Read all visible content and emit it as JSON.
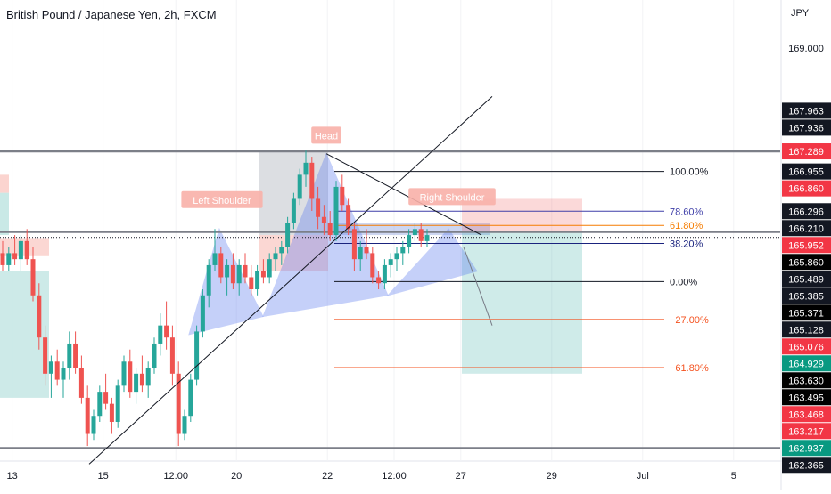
{
  "header": {
    "title": "British Pound / Japanese Yen, 2h, FXCM",
    "currency": "JPY"
  },
  "colors": {
    "bull": "#26a69a",
    "bear": "#ef5350",
    "fib_main": "#131722",
    "fib_786": "#3f3fa8",
    "fib_618": "#f57c00",
    "fib_382": "#1a237e",
    "fib_ext": "#f4511e",
    "pattern_fill": "#5c7bf0",
    "label_bg": "#f8b0a8"
  },
  "chart_data": {
    "type": "candlestick",
    "symbol": "British Pound / Japanese Yen",
    "interval": "2h",
    "source": "FXCM",
    "y_range": [
      162.15,
      169.8
    ],
    "y_ticks": [
      {
        "label": "169.000",
        "value": 169.0,
        "style": "plain"
      },
      {
        "label": "167.963",
        "value": 167.963,
        "style": "dark"
      },
      {
        "label": "167.936",
        "value": 167.936,
        "style": "dark"
      },
      {
        "label": "167.289",
        "value": 167.289,
        "style": "red"
      },
      {
        "label": "166.955",
        "value": 166.955,
        "style": "dark"
      },
      {
        "label": "166.860",
        "value": 166.86,
        "style": "red"
      },
      {
        "label": "166.296",
        "value": 166.296,
        "style": "dark"
      },
      {
        "label": "166.210",
        "value": 166.21,
        "style": "dark"
      },
      {
        "label": "165.952",
        "value": 165.952,
        "style": "red"
      },
      {
        "label": "165.860",
        "value": 165.86,
        "style": "black"
      },
      {
        "label": "165.489",
        "value": 165.489,
        "style": "dark"
      },
      {
        "label": "165.385",
        "value": 165.385,
        "style": "dark"
      },
      {
        "label": "165.371",
        "value": 165.371,
        "style": "black"
      },
      {
        "label": "165.128",
        "value": 165.128,
        "style": "dark"
      },
      {
        "label": "165.076",
        "value": 165.076,
        "style": "red"
      },
      {
        "label": "164.929",
        "value": 164.929,
        "style": "green"
      },
      {
        "label": "163.630",
        "value": 163.63,
        "style": "black"
      },
      {
        "label": "163.495",
        "value": 163.495,
        "style": "black"
      },
      {
        "label": "163.468",
        "value": 163.468,
        "style": "red"
      },
      {
        "label": "163.217",
        "value": 163.217,
        "style": "red"
      },
      {
        "label": "162.937",
        "value": 162.937,
        "style": "green"
      },
      {
        "label": "162.365",
        "value": 162.365,
        "style": "dark"
      }
    ],
    "x_ticks": [
      {
        "label": "13",
        "index": 2
      },
      {
        "label": "15",
        "index": 17
      },
      {
        "label": "12:00",
        "index": 29
      },
      {
        "label": "20",
        "index": 39
      },
      {
        "label": "22",
        "index": 54
      },
      {
        "label": "12:00",
        "index": 65
      },
      {
        "label": "27",
        "index": 76
      },
      {
        "label": "29",
        "index": 91
      },
      {
        "label": "Jul",
        "index": 106
      },
      {
        "label": "5",
        "index": 121
      }
    ],
    "candles": [
      [
        165.6,
        165.8,
        165.3,
        165.4
      ],
      [
        165.4,
        165.7,
        165.3,
        165.6
      ],
      [
        165.6,
        165.9,
        165.4,
        165.5
      ],
      [
        165.5,
        165.9,
        165.3,
        165.8
      ],
      [
        165.8,
        166.0,
        165.4,
        165.5
      ],
      [
        165.5,
        165.7,
        164.8,
        164.9
      ],
      [
        164.9,
        165.1,
        164.0,
        164.2
      ],
      [
        164.2,
        164.4,
        163.4,
        163.6
      ],
      [
        163.6,
        163.9,
        163.2,
        163.8
      ],
      [
        163.8,
        164.0,
        163.4,
        163.5
      ],
      [
        163.5,
        163.8,
        163.2,
        163.7
      ],
      [
        163.7,
        164.3,
        163.5,
        164.1
      ],
      [
        164.1,
        164.3,
        163.6,
        163.7
      ],
      [
        163.7,
        163.9,
        163.1,
        163.2
      ],
      [
        163.2,
        163.4,
        162.4,
        162.6
      ],
      [
        162.6,
        163.0,
        162.5,
        162.9
      ],
      [
        162.9,
        163.4,
        162.8,
        163.3
      ],
      [
        163.3,
        163.6,
        163.0,
        163.1
      ],
      [
        163.1,
        163.2,
        162.6,
        162.8
      ],
      [
        162.8,
        163.5,
        162.7,
        163.4
      ],
      [
        163.4,
        163.9,
        163.3,
        163.8
      ],
      [
        163.8,
        164.0,
        163.2,
        163.3
      ],
      [
        163.3,
        163.7,
        163.1,
        163.6
      ],
      [
        163.6,
        163.9,
        163.3,
        163.4
      ],
      [
        163.4,
        163.8,
        163.2,
        163.7
      ],
      [
        163.7,
        164.2,
        163.6,
        164.1
      ],
      [
        164.1,
        164.6,
        163.9,
        164.4
      ],
      [
        164.4,
        164.8,
        164.0,
        164.2
      ],
      [
        164.2,
        164.4,
        163.4,
        163.6
      ],
      [
        163.6,
        163.8,
        162.4,
        162.6
      ],
      [
        162.6,
        163.0,
        162.5,
        162.9
      ],
      [
        162.9,
        163.6,
        162.8,
        163.5
      ],
      [
        163.5,
        164.4,
        163.4,
        164.3
      ],
      [
        164.3,
        165.0,
        164.2,
        164.9
      ],
      [
        164.9,
        165.5,
        164.7,
        165.4
      ],
      [
        165.4,
        166.0,
        165.3,
        165.6
      ],
      [
        165.6,
        165.7,
        165.1,
        165.2
      ],
      [
        165.2,
        165.5,
        164.9,
        165.4
      ],
      [
        165.4,
        165.6,
        165.0,
        165.1
      ],
      [
        165.1,
        165.5,
        164.9,
        165.4
      ],
      [
        165.4,
        165.6,
        165.1,
        165.2
      ],
      [
        165.2,
        165.4,
        164.9,
        165.0
      ],
      [
        165.0,
        165.4,
        164.9,
        165.3
      ],
      [
        165.3,
        165.5,
        165.1,
        165.2
      ],
      [
        165.2,
        165.6,
        165.1,
        165.5
      ],
      [
        165.5,
        165.7,
        165.3,
        165.6
      ],
      [
        165.6,
        165.8,
        165.4,
        165.7
      ],
      [
        165.7,
        166.2,
        165.6,
        166.1
      ],
      [
        166.1,
        166.6,
        166.0,
        166.5
      ],
      [
        166.5,
        167.0,
        166.4,
        166.9
      ],
      [
        166.9,
        167.3,
        166.7,
        167.1
      ],
      [
        167.1,
        167.2,
        166.3,
        166.5
      ],
      [
        166.5,
        166.7,
        166.0,
        166.2
      ],
      [
        166.2,
        166.4,
        165.9,
        166.1
      ],
      [
        166.1,
        166.3,
        165.8,
        165.9
      ],
      [
        165.9,
        166.8,
        165.8,
        166.7
      ],
      [
        166.7,
        166.9,
        166.3,
        166.4
      ],
      [
        166.4,
        166.5,
        165.9,
        166.0
      ],
      [
        166.0,
        166.1,
        165.3,
        165.5
      ],
      [
        165.5,
        165.8,
        165.3,
        165.7
      ],
      [
        165.7,
        166.0,
        165.5,
        165.6
      ],
      [
        165.6,
        165.7,
        165.1,
        165.2
      ],
      [
        165.2,
        165.3,
        165.0,
        165.1
      ],
      [
        165.1,
        165.5,
        165.0,
        165.4
      ],
      [
        165.4,
        165.6,
        165.2,
        165.5
      ],
      [
        165.5,
        165.7,
        165.3,
        165.6
      ],
      [
        165.6,
        165.8,
        165.4,
        165.7
      ],
      [
        165.7,
        166.0,
        165.6,
        165.9
      ],
      [
        165.9,
        166.1,
        165.8,
        166.0
      ],
      [
        166.0,
        166.1,
        165.7,
        165.8
      ],
      [
        165.8,
        166.0,
        165.7,
        165.9
      ]
    ],
    "fib_levels": [
      {
        "label": "100.00%",
        "price": 166.955,
        "color": "#131722"
      },
      {
        "label": "78.60%",
        "price": 166.296,
        "color": "#3f3fa8"
      },
      {
        "label": "61.80%",
        "price": 166.06,
        "color": "#f57c00"
      },
      {
        "label": "38.20%",
        "price": 165.76,
        "color": "#1a237e"
      },
      {
        "label": "0.00%",
        "price": 165.128,
        "color": "#131722"
      },
      {
        "label": "−27.00%",
        "price": 164.5,
        "color": "#f4511e"
      },
      {
        "label": "−61.80%",
        "price": 163.7,
        "color": "#f4511e"
      }
    ],
    "horizontal_lines": [
      167.289,
      165.952,
      162.365
    ],
    "current_price": 165.86,
    "pattern": {
      "name": "head and shoulders",
      "labels": [
        "Left Shoulder",
        "Head",
        "Right Shoulder"
      ]
    },
    "position": {
      "type": "short",
      "entry": 165.952,
      "stop": 166.5,
      "target": 163.6
    }
  }
}
